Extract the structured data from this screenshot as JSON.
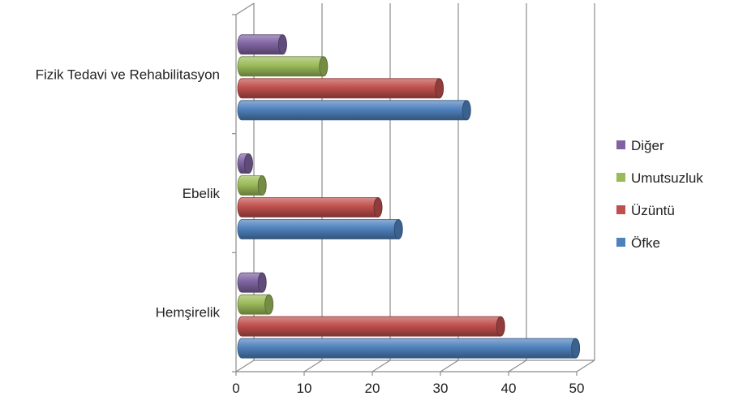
{
  "chart_data": {
    "type": "bar",
    "orientation": "horizontal",
    "style": "3d-cylinder",
    "categories": [
      "Hemşirelik",
      "Ebelik",
      "Fizik Tedavi ve Rehabilitasyon"
    ],
    "series": [
      {
        "name": "Öfke",
        "values": [
          49,
          23,
          33
        ],
        "color": "#4f81bd"
      },
      {
        "name": "Üzüntü",
        "values": [
          38,
          20,
          29
        ],
        "color": "#c0504d"
      },
      {
        "name": "Umutsuzluk",
        "values": [
          4,
          3,
          12
        ],
        "color": "#9bbb59"
      },
      {
        "name": "Diğer",
        "values": [
          3,
          1,
          6
        ],
        "color": "#8064a2"
      }
    ],
    "xlim": [
      0,
      50
    ],
    "xticks": [
      "0",
      "10",
      "20",
      "30",
      "40",
      "50"
    ],
    "grid": true,
    "legend_position": "right",
    "legend_order": [
      "Diğer",
      "Umutsuzluk",
      "Üzüntü",
      "Öfke"
    ]
  }
}
